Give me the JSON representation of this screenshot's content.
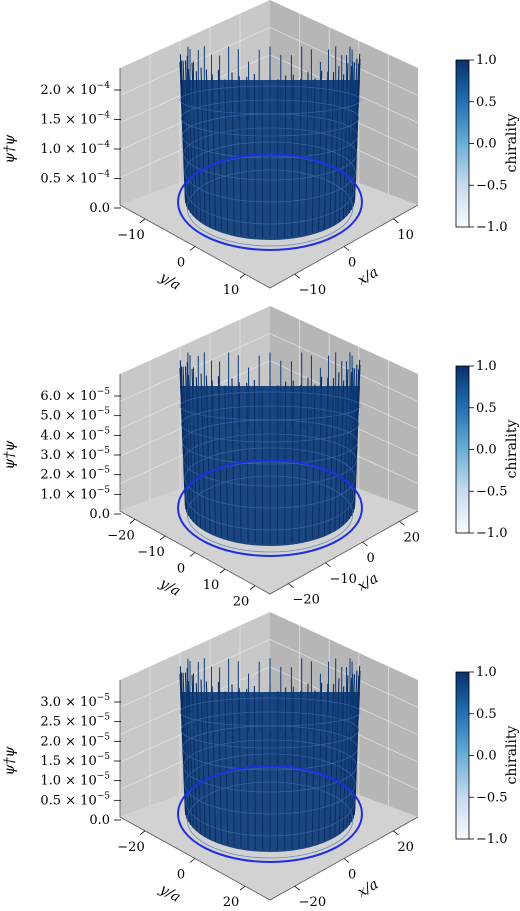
{
  "colorbar": {
    "label": "chirality",
    "ticks": [
      "1.0",
      "0.5",
      "0.0",
      "−0.5",
      "−1.0"
    ],
    "colors": [
      "#f7fbff",
      "#08306b"
    ]
  },
  "colors": {
    "surface": "#0b3a78",
    "circle": "#1f2ee0",
    "pane": "#c8c8c8",
    "pane_dark": "#b6b6b6",
    "grid": "#e6e6e6"
  },
  "chart_data": [
    {
      "type": "surface3d",
      "zlabel": "ψ†ψ",
      "xlabel": "x/a",
      "ylabel": "y/a",
      "z_ticks": [
        {
          "mant": "2.0",
          "exp": "−4"
        },
        {
          "mant": "1.5",
          "exp": "−4"
        },
        {
          "mant": "1.0",
          "exp": "−4"
        },
        {
          "mant": "0.5",
          "exp": "−4"
        },
        {
          "plain": "0.0"
        }
      ],
      "y_ticks": [
        "−10",
        "0",
        "10"
      ],
      "x_ticks": [
        "−10",
        "0",
        "10"
      ],
      "colorbar_range": [
        -1.0,
        1.0
      ]
    },
    {
      "type": "surface3d",
      "zlabel": "ψ†ψ",
      "xlabel": "x/a",
      "ylabel": "y/a",
      "z_ticks": [
        {
          "mant": "6.0",
          "exp": "−5"
        },
        {
          "mant": "5.0",
          "exp": "−5"
        },
        {
          "mant": "4.0",
          "exp": "−5"
        },
        {
          "mant": "3.0",
          "exp": "−5"
        },
        {
          "mant": "2.0",
          "exp": "−5"
        },
        {
          "mant": "1.0",
          "exp": "−5"
        },
        {
          "plain": "0.0"
        }
      ],
      "y_ticks": [
        "−20",
        "−10",
        "0",
        "10",
        "20"
      ],
      "x_ticks": [
        "−20",
        "−10",
        "0",
        "20"
      ],
      "colorbar_range": [
        -1.0,
        1.0
      ]
    },
    {
      "type": "surface3d",
      "zlabel": "ψ†ψ",
      "xlabel": "x/a",
      "ylabel": "y/a",
      "z_ticks": [
        {
          "mant": "3.0",
          "exp": "−5"
        },
        {
          "mant": "2.5",
          "exp": "−5"
        },
        {
          "mant": "2.0",
          "exp": "−5"
        },
        {
          "mant": "1.5",
          "exp": "−5"
        },
        {
          "mant": "1.0",
          "exp": "−5"
        },
        {
          "mant": "0.5",
          "exp": "−5"
        },
        {
          "plain": "0.0"
        }
      ],
      "y_ticks": [
        "−20",
        "0",
        "20"
      ],
      "x_ticks": [
        "−20",
        "0",
        "20"
      ],
      "colorbar_range": [
        -1.0,
        1.0
      ]
    }
  ]
}
